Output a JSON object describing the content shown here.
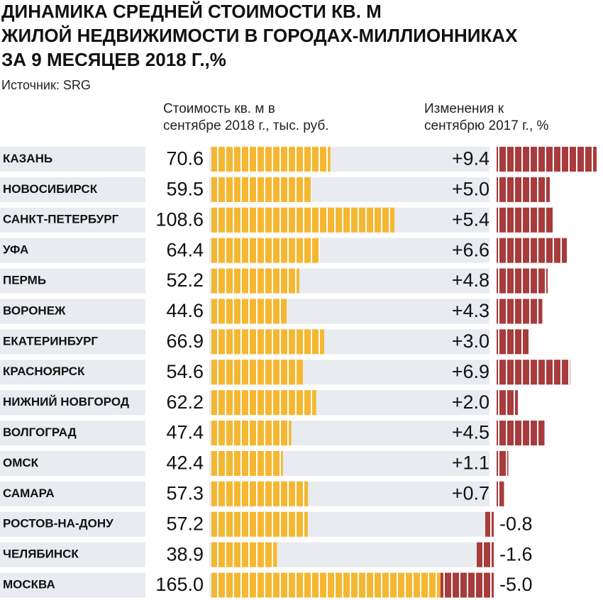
{
  "chart_data": {
    "type": "bar",
    "orientation": "horizontal",
    "title": [
      "ДИНАМИКА СРЕДНЕЙ СТОИМОСТИ КВ. М",
      "ЖИЛОЙ НЕДВИЖИМОСТИ В ГОРОДАХ-МИЛЛИОННИКАХ",
      "ЗА 9 МЕСЯЦЕВ 2018 Г.,%"
    ],
    "source": "Источник: SRG",
    "categories": [
      "КАЗАНЬ",
      "НОВОСИБИРСК",
      "САНКТ-ПЕТЕРБУРГ",
      "УФА",
      "ПЕРМЬ",
      "ВОРОНЕЖ",
      "ЕКАТЕРИНБУРГ",
      "КРАСНОЯРСК",
      "НИЖНИЙ НОВГОРОД",
      "ВОЛГОГРАД",
      "ОМСК",
      "САМАРА",
      "РОСТОВ-НА-ДОНУ",
      "ЧЕЛЯБИНСК",
      "МОСКВА"
    ],
    "series": [
      {
        "name": "Стоимость кв. м в сентябре 2018 г., тыс. руб.",
        "color": "#f5b731",
        "values": [
          70.6,
          59.5,
          108.6,
          64.4,
          52.2,
          44.6,
          66.9,
          54.6,
          62.2,
          47.4,
          42.4,
          57.3,
          57.2,
          38.9,
          165.0
        ],
        "value_labels": [
          "70.6",
          "59.5",
          "108.6",
          "64.4",
          "52.2",
          "44.6",
          "66.9",
          "54.6",
          "62.2",
          "47.4",
          "42.4",
          "57.3",
          "57.2",
          "38.9",
          "165.0"
        ]
      },
      {
        "name": "Изменения к сентябрю 2017 г., %",
        "color": "#a83b3b",
        "values": [
          9.4,
          5.0,
          5.4,
          6.6,
          4.8,
          4.3,
          3.0,
          6.9,
          2.0,
          4.5,
          1.1,
          0.7,
          -0.8,
          -1.6,
          -5.0
        ],
        "value_labels": [
          "+9.4",
          "+5.0",
          "+5.4",
          "+6.6",
          "+4.8",
          "+4.3",
          "+3.0",
          "+6.9",
          "+2.0",
          "+4.5",
          "+1.1",
          "+0.7",
          "-0.8",
          "-1.6",
          "-5.0"
        ]
      }
    ]
  }
}
